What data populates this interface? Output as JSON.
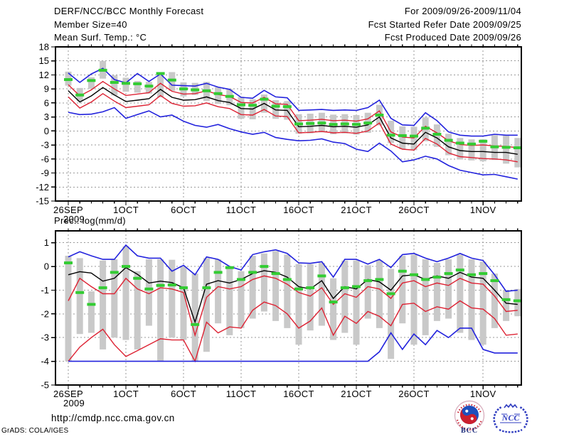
{
  "header": {
    "title": "DERF/NCC/BCC Monthly Forecast",
    "member_size_label": "Member Size=40",
    "for_period": "For 2009/09/26-2009/11/04",
    "refer_date": "Fcst Started Refer Date 2009/09/25",
    "produced_date": "Fcst Produced Date 2009/09/26"
  },
  "footer": {
    "url": "http://cmdp.ncc.cma.gov.cn",
    "credit": "GrADS: COLA/IGES",
    "logos": [
      {
        "label": "BCC"
      },
      {
        "label": "NCC"
      }
    ]
  },
  "colors": {
    "blue": "#2222dd",
    "red": "#dd2233",
    "green": "#33cc33",
    "black": "#000000",
    "bar": "#c9c9c9",
    "grid": "#9a9a9a",
    "logo_blue": "#2f3cc0",
    "logo_red": "#cc2233"
  },
  "chart_data": [
    {
      "type": "line",
      "name": "surface-temperature",
      "title": "Mean Surf. Temp.: °C",
      "x_tick_labels": [
        "26SEP",
        "1OCT",
        "6OCT",
        "11OCT",
        "16OCT",
        "21OCT",
        "26OCT",
        "1NOV"
      ],
      "x_tick_days": [
        0,
        5,
        10,
        15,
        20,
        25,
        30,
        36
      ],
      "x_sub_label": "2009",
      "ylim": [
        -15,
        18
      ],
      "yticks": [
        18,
        15,
        12,
        9,
        6,
        3,
        0,
        -3,
        -6,
        -9,
        -12,
        -15
      ],
      "grid": true,
      "days": [
        "26SEP",
        "27SEP",
        "28SEP",
        "29SEP",
        "30SEP",
        "1OCT",
        "2OCT",
        "3OCT",
        "4OCT",
        "5OCT",
        "6OCT",
        "7OCT",
        "8OCT",
        "9OCT",
        "10OCT",
        "11OCT",
        "12OCT",
        "13OCT",
        "14OCT",
        "15OCT",
        "16OCT",
        "17OCT",
        "18OCT",
        "19OCT",
        "20OCT",
        "21OCT",
        "22OCT",
        "23OCT",
        "24OCT",
        "25OCT",
        "26OCT",
        "27OCT",
        "28OCT",
        "29OCT",
        "30OCT",
        "31OCT",
        "1NOV",
        "2NOV",
        "3NOV",
        "4NOV"
      ],
      "series": [
        {
          "name": "ensemble-max",
          "color": "blue",
          "values": [
            12.4,
            10.4,
            12.2,
            13.4,
            11.0,
            10.3,
            12.3,
            10.6,
            12.2,
            9.8,
            9.7,
            9.6,
            10.2,
            9.4,
            8.9,
            7.2,
            7.0,
            8.7,
            7.3,
            7.1,
            4.4,
            4.5,
            4.6,
            4.4,
            4.5,
            4.4,
            5.0,
            6.6,
            2.7,
            1.3,
            1.2,
            3.9,
            2.2,
            -0.2,
            -0.9,
            -1.1,
            -1.1,
            -0.7,
            -0.9,
            -0.9
          ]
        },
        {
          "name": "ensemble-plus-spread",
          "color": "red",
          "values": [
            9.9,
            7.5,
            8.8,
            10.6,
            9.0,
            7.6,
            7.9,
            8.2,
            10.2,
            8.5,
            7.9,
            8.0,
            8.6,
            7.8,
            7.4,
            6.1,
            6.0,
            7.2,
            5.8,
            5.7,
            2.2,
            2.3,
            2.5,
            2.2,
            2.3,
            2.1,
            2.6,
            4.3,
            -0.2,
            -1.3,
            -1.5,
            1.0,
            -0.4,
            -2.1,
            -2.9,
            -3.1,
            -3.0,
            -3.2,
            -3.3,
            -3.6
          ]
        },
        {
          "name": "ensemble-minus-spread",
          "color": "red",
          "values": [
            7.3,
            4.9,
            6.2,
            8.0,
            6.4,
            5.0,
            5.3,
            5.6,
            7.6,
            5.9,
            5.3,
            5.4,
            6.0,
            5.2,
            4.8,
            3.5,
            3.4,
            4.6,
            3.2,
            3.1,
            -0.4,
            -0.3,
            -0.1,
            -0.4,
            -0.3,
            -0.5,
            0.0,
            1.7,
            -2.8,
            -3.9,
            -4.1,
            -1.6,
            -2.8,
            -4.7,
            -5.5,
            -5.7,
            -5.9,
            -6.0,
            -6.2,
            -6.6
          ]
        },
        {
          "name": "ensemble-mean",
          "color": "black",
          "values": [
            8.6,
            6.2,
            7.5,
            9.3,
            7.7,
            6.3,
            6.6,
            6.9,
            8.9,
            7.2,
            6.6,
            6.7,
            7.3,
            6.5,
            6.1,
            4.8,
            4.7,
            5.9,
            4.5,
            4.4,
            0.9,
            1.0,
            1.2,
            0.9,
            1.0,
            0.8,
            1.3,
            3.0,
            -1.5,
            -2.6,
            -2.8,
            -0.3,
            -1.5,
            -3.4,
            -4.2,
            -4.4,
            -4.4,
            -4.6,
            -4.6,
            -5.0
          ]
        },
        {
          "name": "ensemble-min",
          "color": "blue",
          "values": [
            4.0,
            3.5,
            3.6,
            4.1,
            5.0,
            2.7,
            3.5,
            4.3,
            3.0,
            3.4,
            2.1,
            1.2,
            0.8,
            1.4,
            0.5,
            -0.2,
            -0.7,
            -0.3,
            -1.4,
            -1.8,
            -2.1,
            -2.0,
            -1.7,
            -2.4,
            -2.7,
            -3.9,
            -4.4,
            -2.6,
            -4.3,
            -6.6,
            -6.2,
            -5.4,
            -6.0,
            -7.4,
            -8.4,
            -8.9,
            -9.4,
            -9.3,
            -9.8,
            -10.3
          ]
        },
        {
          "name": "control-forecast",
          "color": "green",
          "style": "dash",
          "values": [
            11.0,
            7.7,
            10.8,
            13.0,
            10.4,
            10.2,
            10.1,
            9.6,
            12.3,
            10.9,
            9.0,
            8.8,
            8.6,
            8.0,
            7.4,
            5.6,
            5.5,
            6.8,
            5.3,
            5.2,
            1.5,
            1.6,
            1.7,
            1.4,
            1.5,
            1.4,
            1.7,
            3.4,
            -0.9,
            -1.0,
            -1.1,
            0.6,
            -0.7,
            -2.0,
            -2.6,
            -2.8,
            -2.2,
            -3.4,
            -3.5,
            -3.6
          ]
        }
      ],
      "bars": [
        [
          9.7,
          12.7
        ],
        [
          6.4,
          9.2
        ],
        [
          9.0,
          11.5
        ],
        [
          11.2,
          15.0
        ],
        [
          7.6,
          11.9
        ],
        [
          8.4,
          11.4
        ],
        [
          8.2,
          10.7
        ],
        [
          8.0,
          10.5
        ],
        [
          7.2,
          12.4
        ],
        [
          8.6,
          12.6
        ],
        [
          7.4,
          10.4
        ],
        [
          7.7,
          10.3
        ],
        [
          6.4,
          10.5
        ],
        [
          5.8,
          9.4
        ],
        [
          5.5,
          9.0
        ],
        [
          2.6,
          7.3
        ],
        [
          2.5,
          6.8
        ],
        [
          3.9,
          7.8
        ],
        [
          2.6,
          6.6
        ],
        [
          2.4,
          6.4
        ],
        [
          -0.6,
          3.6
        ],
        [
          -0.5,
          3.7
        ],
        [
          -0.3,
          3.9
        ],
        [
          -0.7,
          3.5
        ],
        [
          -0.5,
          3.6
        ],
        [
          -0.8,
          3.4
        ],
        [
          -0.4,
          3.9
        ],
        [
          1.2,
          5.6
        ],
        [
          -2.6,
          2.2
        ],
        [
          -3.9,
          1.0
        ],
        [
          -4.1,
          0.9
        ],
        [
          -2.2,
          2.9
        ],
        [
          -3.4,
          1.4
        ],
        [
          -5.2,
          -0.6
        ],
        [
          -6.1,
          -1.5
        ],
        [
          -6.3,
          -1.8
        ],
        [
          -6.5,
          -1.8
        ],
        [
          -6.2,
          -0.9
        ],
        [
          -7.0,
          -0.8
        ],
        [
          -7.8,
          -1.5
        ]
      ]
    },
    {
      "type": "line",
      "name": "precipitation",
      "title": "Prec.: log(mm/d)",
      "x_tick_labels": [
        "26SEP",
        "1OCT",
        "6OCT",
        "11OCT",
        "16OCT",
        "21OCT",
        "26OCT",
        "1NOV"
      ],
      "x_tick_days": [
        0,
        5,
        10,
        15,
        20,
        25,
        30,
        36
      ],
      "x_sub_label": "2009",
      "ylim": [
        -5,
        1.5
      ],
      "yticks": [
        1,
        0,
        -1,
        -2,
        -3,
        -4,
        -5
      ],
      "grid": true,
      "days": [
        "26SEP",
        "27SEP",
        "28SEP",
        "29SEP",
        "30SEP",
        "1OCT",
        "2OCT",
        "3OCT",
        "4OCT",
        "5OCT",
        "6OCT",
        "7OCT",
        "8OCT",
        "9OCT",
        "10OCT",
        "11OCT",
        "12OCT",
        "13OCT",
        "14OCT",
        "15OCT",
        "16OCT",
        "17OCT",
        "18OCT",
        "19OCT",
        "20OCT",
        "21OCT",
        "22OCT",
        "23OCT",
        "24OCT",
        "25OCT",
        "26OCT",
        "27OCT",
        "28OCT",
        "29OCT",
        "30OCT",
        "31OCT",
        "1NOV",
        "2NOV",
        "3NOV",
        "4NOV"
      ],
      "series": [
        {
          "name": "ensemble-max",
          "color": "blue",
          "values": [
            0.4,
            0.62,
            0.45,
            0.3,
            0.3,
            0.9,
            0.45,
            0.35,
            0.35,
            -0.2,
            0.05,
            -0.35,
            0.4,
            0.3,
            0.0,
            -0.15,
            0.5,
            0.62,
            0.7,
            0.55,
            0.15,
            0.13,
            0.2,
            -0.45,
            0.3,
            0.3,
            0.1,
            0.3,
            -0.05,
            0.5,
            0.55,
            0.35,
            0.2,
            0.35,
            0.55,
            0.35,
            0.25,
            -0.35,
            -1.05,
            -1.0
          ]
        },
        {
          "name": "ensemble-plus-spread",
          "color": "red",
          "values": [
            -1.45,
            -0.5,
            -0.85,
            -1.15,
            -1.15,
            -0.5,
            -0.95,
            -1.15,
            -0.9,
            -0.95,
            -1.1,
            -2.9,
            -1.3,
            -0.85,
            -0.95,
            -0.85,
            -0.55,
            -0.4,
            -0.5,
            -0.75,
            -1.1,
            -1.25,
            -0.9,
            -1.6,
            -1.15,
            -1.3,
            -0.85,
            -0.95,
            -1.35,
            -0.7,
            -0.6,
            -0.85,
            -0.7,
            -0.8,
            -0.5,
            -0.7,
            -0.75,
            -1.25,
            -1.9,
            -1.85
          ]
        },
        {
          "name": "ensemble-minus-spread",
          "color": "red",
          "values": [
            -4.0,
            -3.4,
            -3.0,
            -2.65,
            -3.3,
            -3.8,
            -3.55,
            -3.3,
            -3.05,
            -3.1,
            -3.1,
            -4.0,
            -2.35,
            -2.8,
            -2.55,
            -2.6,
            -1.85,
            -1.5,
            -1.65,
            -2.0,
            -2.6,
            -2.3,
            -1.75,
            -2.9,
            -2.1,
            -2.4,
            -1.9,
            -2.1,
            -2.5,
            -1.6,
            -1.55,
            -1.9,
            -1.7,
            -1.8,
            -1.45,
            -1.75,
            -1.8,
            -2.2,
            -2.9,
            -2.85
          ]
        },
        {
          "name": "ensemble-mean",
          "color": "black",
          "values": [
            -0.35,
            -0.22,
            -0.28,
            -0.62,
            -0.5,
            -0.05,
            -0.33,
            -0.7,
            -0.62,
            -0.68,
            -0.9,
            -2.35,
            -0.75,
            -0.6,
            -0.7,
            -0.55,
            -0.3,
            -0.18,
            -0.25,
            -0.45,
            -0.85,
            -0.95,
            -0.6,
            -1.35,
            -0.85,
            -0.95,
            -0.55,
            -0.65,
            -1.0,
            -0.4,
            -0.35,
            -0.55,
            -0.4,
            -0.5,
            -0.25,
            -0.45,
            -0.5,
            -1.0,
            -1.55,
            -1.6
          ]
        },
        {
          "name": "ensemble-min",
          "color": "blue",
          "values": [
            -4.0,
            -4.0,
            -4.0,
            -4.0,
            -4.0,
            -4.0,
            -4.0,
            -4.0,
            -4.0,
            -4.0,
            -4.0,
            -4.0,
            -4.0,
            -4.0,
            -4.0,
            -4.0,
            -4.0,
            -4.0,
            -4.0,
            -4.0,
            -4.0,
            -4.0,
            -4.0,
            -4.0,
            -4.0,
            -4.0,
            -4.0,
            -3.6,
            -2.8,
            -3.5,
            -2.85,
            -3.3,
            -2.7,
            -3.0,
            -2.6,
            -2.6,
            -3.5,
            -3.65,
            -3.65,
            -3.65
          ]
        },
        {
          "name": "control-forecast",
          "color": "green",
          "style": "dash",
          "values": [
            0.15,
            -1.1,
            -1.6,
            -0.9,
            -0.25,
            0.0,
            -0.5,
            -0.95,
            -0.8,
            -0.78,
            -0.9,
            -2.45,
            -0.9,
            -0.25,
            -0.05,
            -0.55,
            -0.25,
            0.0,
            -0.3,
            -0.55,
            -0.95,
            -0.9,
            -0.4,
            -1.5,
            -0.9,
            -0.85,
            -0.6,
            -0.55,
            -1.15,
            -0.2,
            -0.35,
            -0.55,
            -0.45,
            -0.3,
            -0.15,
            -0.35,
            -0.3,
            -0.6,
            -1.4,
            -1.45
          ]
        }
      ],
      "bars": [
        [
          -4.0,
          0.45
        ],
        [
          -2.85,
          0.35
        ],
        [
          -2.8,
          -1.05
        ],
        [
          -3.5,
          0.25
        ],
        [
          -3.0,
          0.3
        ],
        [
          -3.1,
          0.85
        ],
        [
          -3.5,
          -0.2
        ],
        [
          -2.5,
          0.3
        ],
        [
          -4.0,
          0.3
        ],
        [
          -3.0,
          0.28
        ],
        [
          -3.1,
          0.0
        ],
        [
          -4.0,
          -0.3
        ],
        [
          -3.6,
          0.35
        ],
        [
          -2.4,
          0.3
        ],
        [
          -2.9,
          -0.05
        ],
        [
          -2.6,
          -0.2
        ],
        [
          -2.2,
          0.45
        ],
        [
          -1.9,
          0.55
        ],
        [
          -2.3,
          0.65
        ],
        [
          -2.6,
          0.5
        ],
        [
          -3.3,
          0.1
        ],
        [
          -2.7,
          0.1
        ],
        [
          -2.5,
          0.15
        ],
        [
          -3.1,
          -0.5
        ],
        [
          -2.8,
          0.25
        ],
        [
          -3.3,
          0.25
        ],
        [
          -2.2,
          0.05
        ],
        [
          -2.6,
          0.25
        ],
        [
          -3.9,
          -0.1
        ],
        [
          -2.4,
          0.45
        ],
        [
          -3.3,
          0.5
        ],
        [
          -2.9,
          0.3
        ],
        [
          -2.3,
          0.15
        ],
        [
          -2.2,
          0.3
        ],
        [
          -2.8,
          0.5
        ],
        [
          -3.1,
          0.3
        ],
        [
          -3.3,
          0.2
        ],
        [
          -2.6,
          -0.3
        ],
        [
          -2.3,
          -1.0
        ],
        [
          -2.1,
          -0.95
        ]
      ]
    }
  ]
}
